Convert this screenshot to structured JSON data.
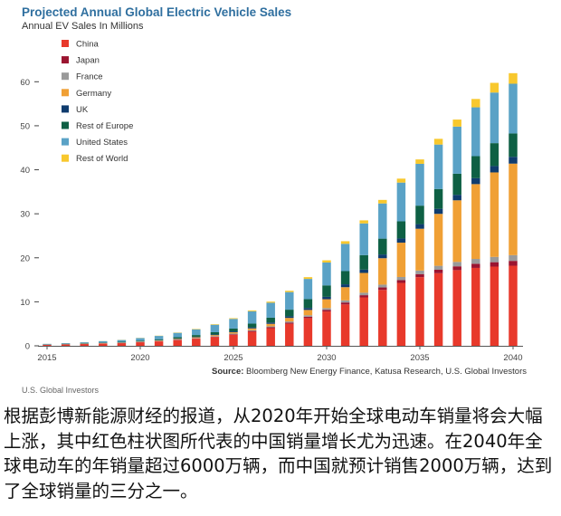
{
  "chart_data": {
    "type": "bar",
    "stacked": true,
    "title": "Projected Annual Global Electric Vehicle Sales",
    "ylabel": "Annual EV Sales In Millions",
    "xlabel": "",
    "ylim": [
      0,
      65
    ],
    "yticks": [
      0,
      10,
      20,
      30,
      40,
      50,
      60
    ],
    "xticks": [
      "2015",
      "2020",
      "2025",
      "2030",
      "2035",
      "2040"
    ],
    "categories": [
      "2015",
      "2016",
      "2017",
      "2018",
      "2019",
      "2020",
      "2021",
      "2022",
      "2023",
      "2024",
      "2025",
      "2026",
      "2027",
      "2028",
      "2029",
      "2030",
      "2031",
      "2032",
      "2033",
      "2034",
      "2035",
      "2036",
      "2037",
      "2038",
      "2039",
      "2040"
    ],
    "legend_position": "top-left",
    "series": [
      {
        "name": "China",
        "color": "#e8392b",
        "values": [
          0.2,
          0.3,
          0.4,
          0.5,
          0.6,
          0.8,
          1.0,
          1.3,
          1.6,
          2.0,
          2.5,
          3.2,
          4.0,
          5.0,
          6.3,
          7.8,
          9.4,
          11.0,
          12.7,
          14.3,
          15.6,
          16.5,
          17.2,
          17.7,
          18.0,
          18.2
        ]
      },
      {
        "name": "Japan",
        "color": "#9b1530",
        "values": [
          0.02,
          0.02,
          0.03,
          0.03,
          0.04,
          0.05,
          0.06,
          0.07,
          0.09,
          0.11,
          0.14,
          0.18,
          0.22,
          0.27,
          0.32,
          0.38,
          0.44,
          0.5,
          0.56,
          0.62,
          0.7,
          0.78,
          0.86,
          0.94,
          1.0,
          1.1
        ]
      },
      {
        "name": "France",
        "color": "#9a9a9a",
        "values": [
          0.02,
          0.02,
          0.03,
          0.03,
          0.04,
          0.05,
          0.06,
          0.07,
          0.09,
          0.11,
          0.14,
          0.18,
          0.22,
          0.27,
          0.33,
          0.4,
          0.48,
          0.56,
          0.64,
          0.72,
          0.8,
          0.9,
          1.0,
          1.1,
          1.2,
          1.3
        ]
      },
      {
        "name": "Germany",
        "color": "#f0a035",
        "values": [
          0.02,
          0.03,
          0.04,
          0.05,
          0.06,
          0.08,
          0.1,
          0.13,
          0.17,
          0.22,
          0.3,
          0.4,
          0.55,
          0.8,
          1.2,
          2.0,
          3.0,
          4.5,
          6.0,
          7.8,
          9.5,
          11.8,
          14.0,
          17.0,
          19.2,
          20.8
        ]
      },
      {
        "name": "UK",
        "color": "#0f3c6e",
        "values": [
          0.03,
          0.03,
          0.04,
          0.05,
          0.06,
          0.07,
          0.08,
          0.1,
          0.12,
          0.15,
          0.19,
          0.24,
          0.3,
          0.37,
          0.45,
          0.55,
          0.65,
          0.75,
          0.85,
          0.95,
          1.05,
          1.15,
          1.25,
          1.35,
          1.45,
          1.55
        ]
      },
      {
        "name": "Rest of Europe",
        "color": "#0e6044",
        "values": [
          0.05,
          0.06,
          0.07,
          0.1,
          0.12,
          0.15,
          0.2,
          0.28,
          0.38,
          0.5,
          0.65,
          0.85,
          1.1,
          1.5,
          2.0,
          2.6,
          3.0,
          3.3,
          3.6,
          3.9,
          4.2,
          4.5,
          4.8,
          5.0,
          5.2,
          5.3
        ]
      },
      {
        "name": "United States",
        "color": "#5aa2c6",
        "values": [
          0.1,
          0.15,
          0.2,
          0.3,
          0.4,
          0.55,
          0.75,
          1.0,
          1.3,
          1.7,
          2.2,
          2.8,
          3.4,
          4.0,
          4.6,
          5.2,
          6.2,
          7.2,
          8.0,
          8.8,
          9.5,
          10.1,
          10.7,
          11.1,
          11.5,
          11.3
        ]
      },
      {
        "name": "Rest of World",
        "color": "#f8c82d",
        "values": [
          0.01,
          0.01,
          0.02,
          0.02,
          0.03,
          0.04,
          0.05,
          0.07,
          0.09,
          0.12,
          0.15,
          0.2,
          0.25,
          0.3,
          0.4,
          0.5,
          0.6,
          0.7,
          0.8,
          0.9,
          1.0,
          1.3,
          1.6,
          1.9,
          2.2,
          2.4
        ]
      }
    ]
  },
  "source": {
    "label": "Source:",
    "text": " Bloomberg New Energy Finance, Katusa Research, U.S. Global Investors"
  },
  "credit": "U.S. Global Investors",
  "caption": "根据彭博新能源财经的报道，从2020年开始全球电动车销量将会大幅上涨，其中红色柱状图所代表的中国销量增长尤为迅速。在2040年全球电动车的年销量超过6000万辆，而中国就预计销售2000万辆，达到了全球销量的三分之一。"
}
